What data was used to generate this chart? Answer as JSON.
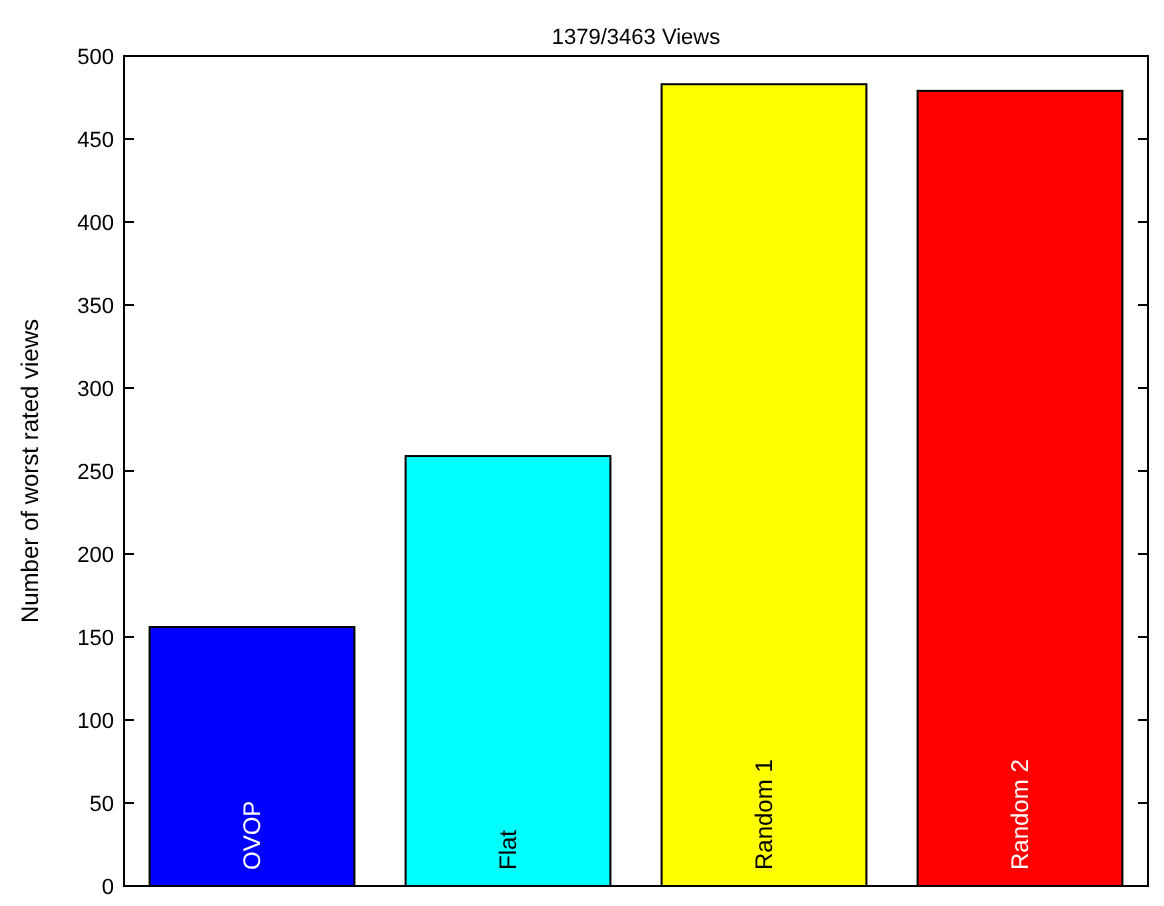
{
  "chart_data": {
    "type": "bar",
    "title": "1379/3463 Views",
    "ylabel": "Number of worst rated views",
    "categories": [
      "OVOP",
      "Flat",
      "Random 1",
      "Random 2"
    ],
    "values": [
      156,
      259,
      483,
      479
    ],
    "colors": [
      "#0000ff",
      "#00ffff",
      "#ffff00",
      "#ff0000"
    ],
    "ylim": [
      0,
      500
    ],
    "yticks": [
      0,
      50,
      100,
      150,
      200,
      250,
      300,
      350,
      400,
      450,
      500
    ],
    "grid": false
  }
}
